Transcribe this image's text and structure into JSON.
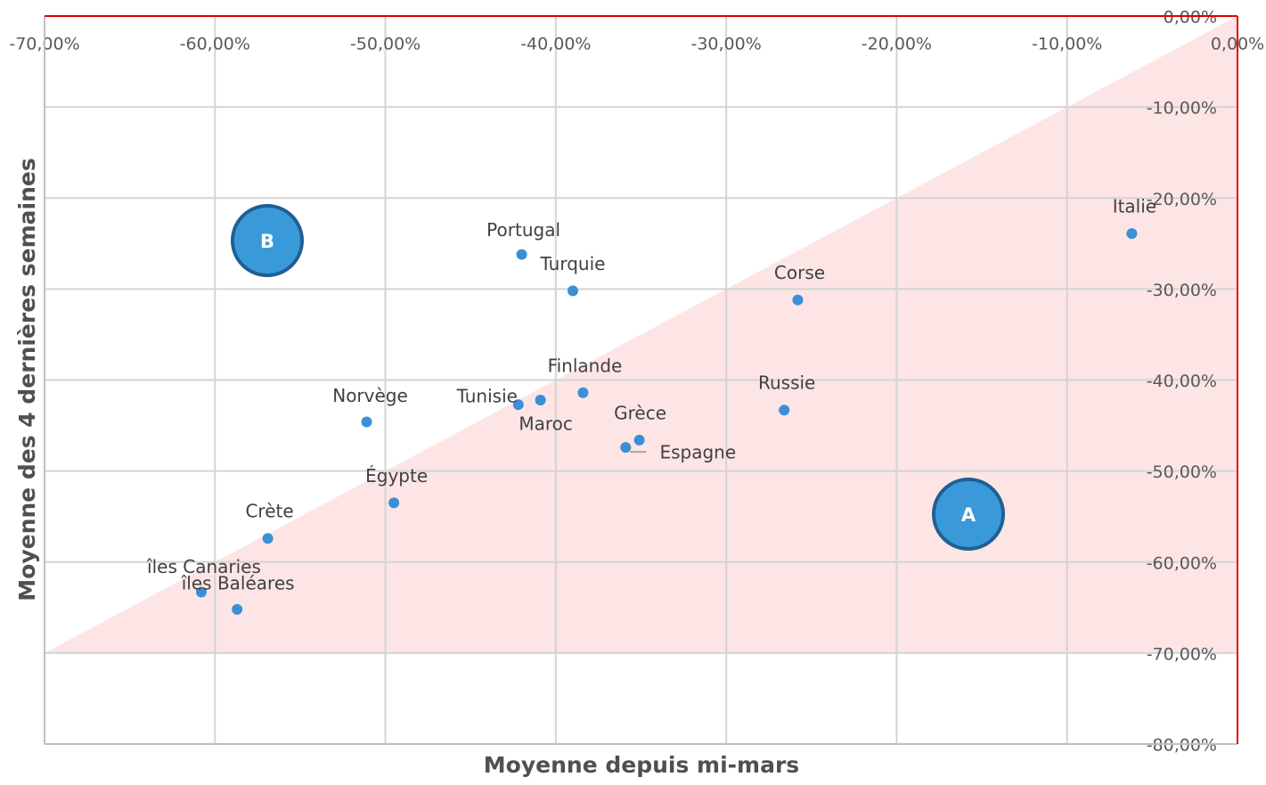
{
  "chart_data": {
    "type": "scatter",
    "x_label": "Moyenne depuis mi-mars",
    "y_label": "Moyenne des 4 dernières semaines",
    "color": "#3a8fd6",
    "points": [
      {
        "label": "Italie",
        "x": -6.2,
        "y": -23.9
      },
      {
        "label": "Corse",
        "x": -25.8,
        "y": -31.2
      },
      {
        "label": "Russie",
        "x": -26.6,
        "y": -43.3
      },
      {
        "label": "Portugal",
        "x": -42.0,
        "y": -26.2
      },
      {
        "label": "Turquie",
        "x": -39.0,
        "y": -30.2
      },
      {
        "label": "Finlande",
        "x": -38.4,
        "y": -41.4
      },
      {
        "label": "Maroc",
        "x": -40.9,
        "y": -42.2
      },
      {
        "label": "Tunisie",
        "x": -42.2,
        "y": -42.7
      },
      {
        "label": "Grèce",
        "x": -35.1,
        "y": -46.6
      },
      {
        "label": "Espagne",
        "x": -35.9,
        "y": -47.4
      },
      {
        "label": "Norvège",
        "x": -51.1,
        "y": -44.6
      },
      {
        "label": "Égypte",
        "x": -49.5,
        "y": -53.5
      },
      {
        "label": "Crète",
        "x": -56.9,
        "y": -57.4
      },
      {
        "label": "îles Canaries",
        "x": -60.8,
        "y": -63.3
      },
      {
        "label": "îles Baléares",
        "x": -58.7,
        "y": -65.2
      }
    ],
    "annotations": [
      "B",
      "A"
    ],
    "xlim": [
      -70,
      0
    ],
    "ylim": [
      -80,
      0
    ],
    "xticks": [
      {
        "value": -70,
        "label": "-70,00%"
      },
      {
        "value": -60,
        "label": "-60,00%"
      },
      {
        "value": -50,
        "label": "-50,00%"
      },
      {
        "value": -40,
        "label": "-40,00%"
      },
      {
        "value": -30,
        "label": "-30,00%"
      },
      {
        "value": -20,
        "label": "-20,00%"
      },
      {
        "value": -10,
        "label": "-10,00%"
      },
      {
        "value": 0,
        "label": "0,00%"
      }
    ],
    "yticks": [
      {
        "value": 0,
        "label": "0,00%"
      },
      {
        "value": -10,
        "label": "-10,00%"
      },
      {
        "value": -20,
        "label": "-20,00%"
      },
      {
        "value": -30,
        "label": "-30,00%"
      },
      {
        "value": -40,
        "label": "-40,00%"
      },
      {
        "value": -50,
        "label": "-50,00%"
      },
      {
        "value": -60,
        "label": "-60,00%"
      },
      {
        "value": -70,
        "label": "-70,00%"
      },
      {
        "value": -80,
        "label": "-80,00%"
      }
    ],
    "grid": true
  }
}
